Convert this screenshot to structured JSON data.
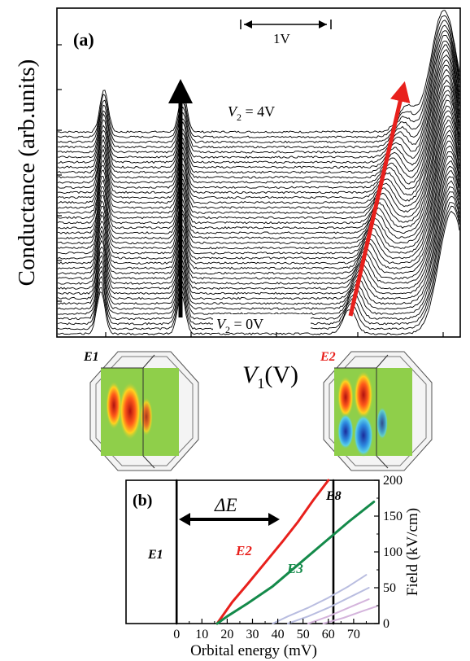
{
  "chart_data": [
    {
      "panel": "(a)",
      "type": "line",
      "ylabel": "Conductance (arb.units)",
      "xlabel_symbol": "V",
      "xlabel_sub": "1",
      "xlabel_unit": "(V)",
      "scale_bar_label": "1V",
      "trace_top_prefix": "V",
      "trace_top_sub": "2",
      "trace_top_value": " = 4V",
      "trace_bottom_prefix": "V",
      "trace_bottom_sub": "2",
      "trace_bottom_value": " = 0V",
      "series_count": 41,
      "arrow_black_color": "#000000",
      "arrow_red_color": "#e8201c",
      "inset_left_label": "E1",
      "inset_right_label": "E2",
      "inset_right_label_color": "#e8201c"
    },
    {
      "panel": "(b)",
      "type": "line",
      "xlabel": "Orbital energy (mV)",
      "ylabel": "Field (kV/cm)",
      "x_ticks": [
        "0",
        "10",
        "20",
        "30",
        "40",
        "50",
        "60",
        "70"
      ],
      "y_ticks": [
        "0",
        "50",
        "100",
        "150",
        "200"
      ],
      "xlim": [
        -20,
        80
      ],
      "ylim": [
        0,
        200
      ],
      "delta_label": "ΔE",
      "labels": {
        "e1": "E1",
        "e8": "E8",
        "e2": "E2",
        "e3": "E3"
      },
      "series": [
        {
          "name": "E1",
          "color": "#000000",
          "x": [
            0,
            0
          ],
          "y": [
            0,
            200
          ]
        },
        {
          "name": "E8",
          "color": "#000000",
          "x": [
            62,
            62
          ],
          "y": [
            0,
            200
          ]
        },
        {
          "name": "E2",
          "color": "#e8201c",
          "x": [
            16,
            18,
            22,
            28,
            35,
            42,
            48,
            54,
            60
          ],
          "y": [
            0,
            10,
            30,
            55,
            85,
            115,
            142,
            172,
            200
          ]
        },
        {
          "name": "E3",
          "color": "#148a4a",
          "x": [
            16,
            20,
            28,
            38,
            48,
            58,
            68,
            78
          ],
          "y": [
            0,
            10,
            28,
            52,
            82,
            112,
            142,
            170
          ]
        },
        {
          "name": "",
          "color": "#b9bde0",
          "x": [
            38,
            44,
            52,
            60,
            68,
            75
          ],
          "y": [
            0,
            10,
            22,
            36,
            52,
            68
          ]
        },
        {
          "name": "",
          "color": "#b9bde0",
          "x": [
            44,
            52,
            60,
            68,
            76
          ],
          "y": [
            0,
            10,
            22,
            36,
            50
          ]
        },
        {
          "name": "",
          "color": "#d4b4dc",
          "x": [
            52,
            60,
            68,
            76
          ],
          "y": [
            0,
            10,
            22,
            34
          ]
        },
        {
          "name": "",
          "color": "#d4b4dc",
          "x": [
            58,
            66,
            74,
            79
          ],
          "y": [
            0,
            8,
            18,
            24
          ]
        }
      ]
    }
  ]
}
